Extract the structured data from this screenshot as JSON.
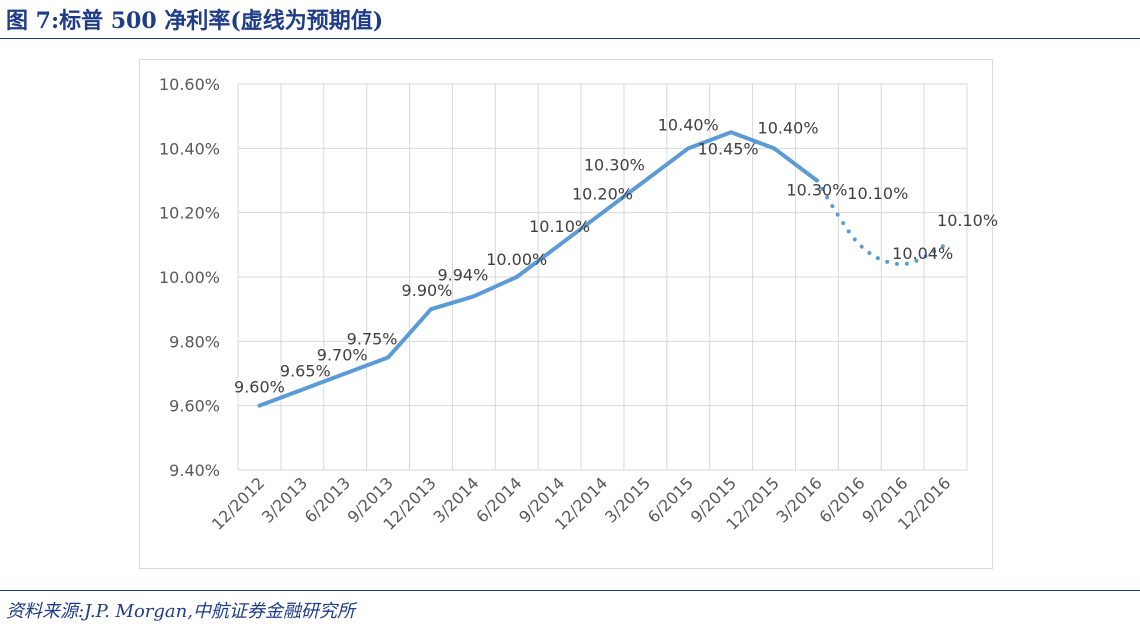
{
  "page": {
    "title": "图 7:标普 500 净利率(虚线为预期值)",
    "source": "资料来源:J.P. Morgan,中航证券金融研究所"
  },
  "chart_data": {
    "type": "line",
    "title": "",
    "xlabel": "",
    "ylabel": "",
    "categories": [
      "12/2012",
      "3/2013",
      "6/2013",
      "9/2013",
      "12/2013",
      "3/2014",
      "6/2014",
      "9/2014",
      "12/2014",
      "3/2015",
      "6/2015",
      "9/2015",
      "12/2015",
      "3/2016",
      "6/2016",
      "9/2016",
      "12/2016"
    ],
    "ylim": [
      9.4,
      10.6
    ],
    "yticks": [
      "9.40%",
      "9.60%",
      "9.80%",
      "10.00%",
      "10.20%",
      "10.40%",
      "10.60%"
    ],
    "grid": "vertical and horizontal",
    "color": "#5b9bd5",
    "series": [
      {
        "name": "",
        "actual": [
          {
            "x": "12/2012",
            "y": 9.6,
            "label": "9.60%"
          },
          {
            "x": "3/2013",
            "y": 9.65,
            "label": "9.65%"
          },
          {
            "x": "6/2013",
            "y": 9.7,
            "label": "9.70%"
          },
          {
            "x": "9/2013",
            "y": 9.75,
            "label": "9.75%"
          },
          {
            "x": "12/2013",
            "y": 9.9,
            "label": "9.90%"
          },
          {
            "x": "3/2014",
            "y": 9.94,
            "label": "9.94%"
          },
          {
            "x": "6/2014",
            "y": 10.0,
            "label": "10.00%"
          },
          {
            "x": "9/2014",
            "y": 10.1,
            "label": "10.10%"
          },
          {
            "x": "12/2014",
            "y": 10.2,
            "label": "10.20%"
          },
          {
            "x": "3/2015",
            "y": 10.3,
            "label": "10.30%"
          },
          {
            "x": "6/2015",
            "y": 10.4,
            "label": "10.40%"
          },
          {
            "x": "9/2015",
            "y": 10.45,
            "label": "10.45%"
          },
          {
            "x": "12/2015",
            "y": 10.4,
            "label": "10.40%"
          },
          {
            "x": "3/2016",
            "y": 10.3,
            "label": "10.30%"
          }
        ],
        "forecast": [
          {
            "x": "3/2016",
            "y": 10.3
          },
          {
            "x": "6/2016",
            "y": 10.1,
            "label": "10.10%"
          },
          {
            "x": "9/2016",
            "y": 10.04,
            "label": "10.04%"
          },
          {
            "x": "12/2016",
            "y": 10.1,
            "label": "10.10%"
          }
        ]
      }
    ]
  }
}
